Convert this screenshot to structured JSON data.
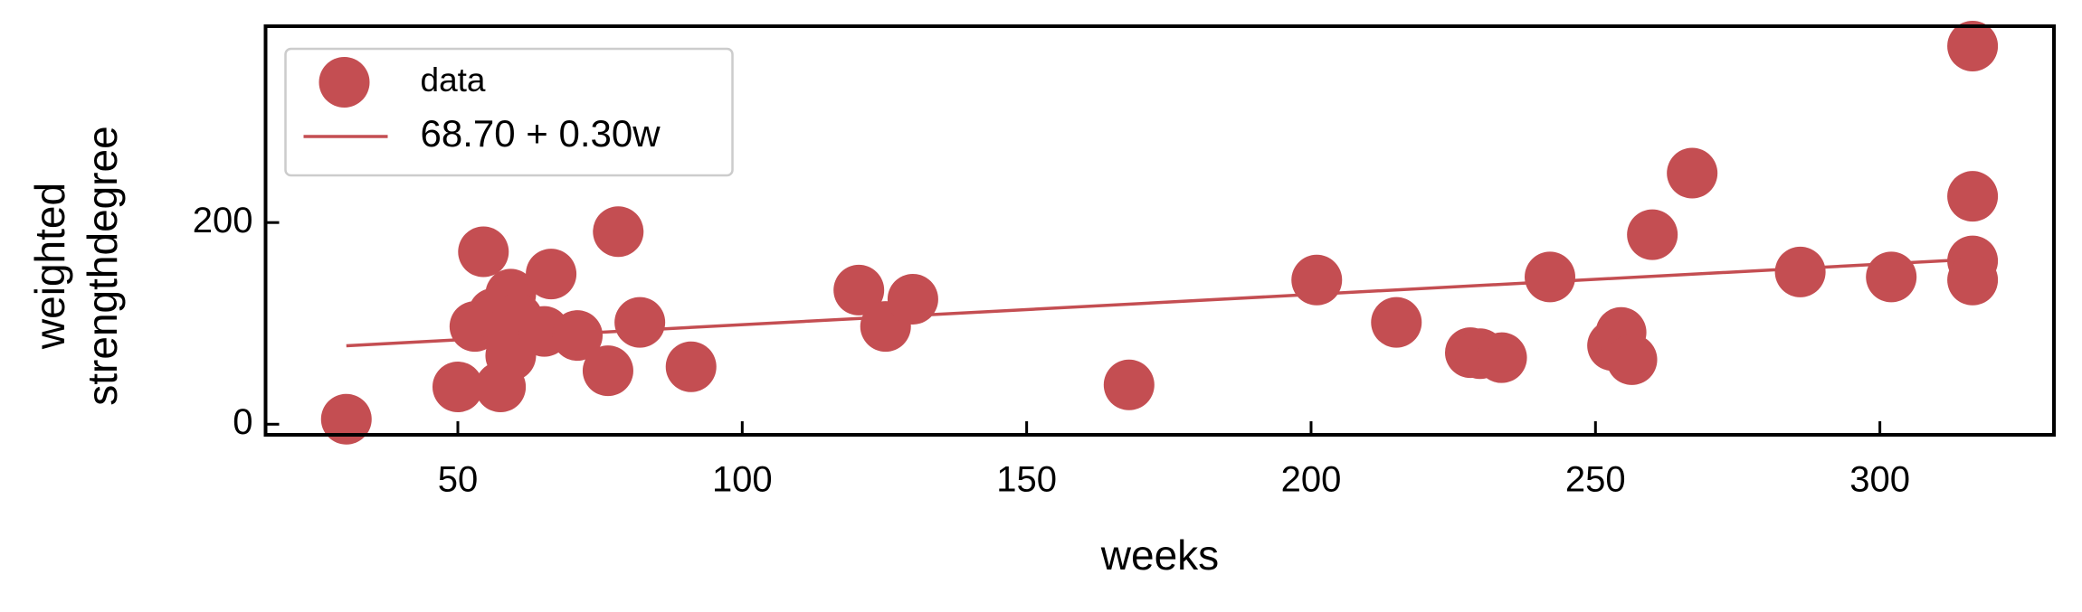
{
  "chart_data": {
    "type": "scatter",
    "xlabel": "weeks",
    "ylabel": [
      "weighted",
      "strengthdegree"
    ],
    "xlim": [
      16.2,
      330.6
    ],
    "ylim": [
      -10.5,
      394.7
    ],
    "xticks": [
      50,
      100,
      150,
      200,
      250,
      300
    ],
    "yticks": [
      0,
      200
    ],
    "legend": "upper left",
    "series": [
      {
        "name": "data",
        "color": "#c44e52",
        "kind": "points",
        "x": [
          30.4,
          50,
          57.5,
          54.5,
          53,
          56.3,
          59.3,
          60.5,
          59.3,
          65.2,
          66.4,
          71,
          76.4,
          78.2,
          82,
          91,
          120.5,
          125.2,
          130,
          168,
          201,
          215,
          228,
          229.7,
          233.5,
          242,
          253,
          254.5,
          256.4,
          260,
          267,
          286,
          302,
          316.3,
          316.3,
          316.3,
          316.3
        ],
        "values": [
          5,
          37,
          37,
          171,
          97,
          110,
          129,
          105,
          68,
          92,
          149,
          88,
          53,
          191,
          101,
          57,
          133,
          97,
          124,
          39,
          143,
          101,
          71,
          70,
          66,
          146,
          78,
          91,
          64,
          188,
          249,
          151,
          146,
          375,
          226,
          162,
          143
        ]
      },
      {
        "name": "68.70 + 0.30w",
        "color": "#c44e52",
        "kind": "line",
        "x": [
          30.4,
          316.3
        ],
        "values": [
          77.8,
          163.6
        ]
      }
    ]
  }
}
